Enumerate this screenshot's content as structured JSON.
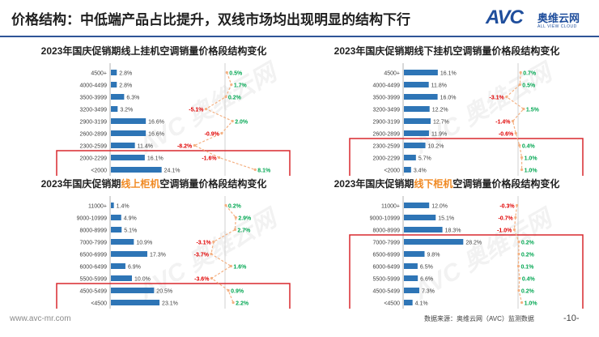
{
  "header": {
    "title": "价格结构：中低端产品占比提升，双线市场均出现明显的结构下行",
    "brand_mark": "AVC",
    "brand_cn": "奥维云网",
    "brand_en": "ALL VIEW CLOUD",
    "accent_color": "#2f5597"
  },
  "footer": {
    "website": "www.avc-mr.com",
    "source": "数据来源：奥维云网（AVC）监测数据",
    "page": "-10-"
  },
  "colors": {
    "bar": "#2e75b6",
    "change_line": "#f4b183",
    "positive": "#00a651",
    "negative": "#e00000",
    "highlight_box": "#d9282e"
  },
  "chart_data": [
    {
      "type": "bar",
      "title_parts": [
        "2023年国庆促销期线上挂机空调销量价格段结构变化"
      ],
      "categories": [
        "4500+",
        "4000-4499",
        "3500-3999",
        "3200-3499",
        "2900-3199",
        "2600-2899",
        "2300-2599",
        "2000-2299",
        "<2000"
      ],
      "values": [
        2.8,
        2.8,
        6.3,
        3.2,
        16.6,
        16.6,
        11.4,
        16.1,
        24.1
      ],
      "value_labels": [
        "2.8%",
        "2.8%",
        "6.3%",
        "3.2%",
        "16.6%",
        "16.6%",
        "11.4%",
        "16.1%",
        "24.1%"
      ],
      "changes": [
        0.5,
        1.7,
        0.2,
        -5.1,
        2.0,
        -0.9,
        -8.2,
        -1.6,
        8.1
      ],
      "change_labels": [
        "0.5%",
        "1.7%",
        "0.2%",
        "-5.1%",
        "2.0%",
        "-0.9%",
        "-8.2%",
        "-1.6%",
        "8.1%"
      ],
      "highlight_rows": [
        7,
        8
      ]
    },
    {
      "type": "bar",
      "title_parts": [
        "2023年国庆促销期线下挂机空调销量价格段结构变化"
      ],
      "categories": [
        "4500+",
        "4000-4499",
        "3500-3999",
        "3200-3499",
        "2900-3199",
        "2600-2899",
        "2300-2599",
        "2000-2299",
        "<2000"
      ],
      "values": [
        16.1,
        11.8,
        16.0,
        12.2,
        12.7,
        11.9,
        10.2,
        5.7,
        3.4
      ],
      "value_labels": [
        "16.1%",
        "11.8%",
        "16.0%",
        "12.2%",
        "12.7%",
        "11.9%",
        "10.2%",
        "5.7%",
        "3.4%"
      ],
      "changes": [
        0.7,
        0.5,
        -3.1,
        1.5,
        -1.4,
        -0.6,
        0.4,
        1.0,
        1.0
      ],
      "change_labels": [
        "0.7%",
        "0.5%",
        "-3.1%",
        "1.5%",
        "-1.4%",
        "-0.6%",
        "0.4%",
        "1.0%",
        "1.0%"
      ],
      "highlight_rows": [
        6,
        7,
        8
      ]
    },
    {
      "type": "bar",
      "title_parts": [
        "2023年国庆促销期",
        "线上柜机",
        "空调销量价格段结构变化"
      ],
      "categories": [
        "11000+",
        "9000-10999",
        "8000-8999",
        "7000-7999",
        "6500-6999",
        "6000-6499",
        "5500-5999",
        "4500-5499",
        "<4500"
      ],
      "values": [
        1.4,
        4.9,
        5.1,
        10.9,
        17.3,
        6.9,
        10.0,
        20.5,
        23.1
      ],
      "value_labels": [
        "1.4%",
        "4.9%",
        "5.1%",
        "10.9%",
        "17.3%",
        "6.9%",
        "10.0%",
        "20.5%",
        "23.1%"
      ],
      "changes": [
        0.2,
        2.9,
        2.7,
        -3.1,
        -3.7,
        1.6,
        -3.6,
        0.9,
        2.2
      ],
      "change_labels": [
        "0.2%",
        "2.9%",
        "2.7%",
        "-3.1%",
        "-3.7%",
        "1.6%",
        "-3.6%",
        "0.9%",
        "2.2%"
      ],
      "highlight_rows": [
        7,
        8
      ]
    },
    {
      "type": "bar",
      "title_parts": [
        "2023年国庆促销期",
        "线下柜机",
        "空调销量价格段结构变化"
      ],
      "categories": [
        "11000+",
        "9000-10999",
        "8000-8999",
        "7000-7999",
        "6500-6999",
        "6000-6499",
        "5500-5999",
        "4500-5499",
        "<4500"
      ],
      "values": [
        12.0,
        15.1,
        18.3,
        28.2,
        9.8,
        6.5,
        6.6,
        7.3,
        4.1
      ],
      "value_labels": [
        "12.0%",
        "15.1%",
        "18.3%",
        "28.2%",
        "9.8%",
        "6.5%",
        "6.6%",
        "7.3%",
        "4.1%"
      ],
      "changes": [
        -0.3,
        -0.7,
        -1.0,
        0.2,
        0.2,
        0.1,
        0.4,
        0.2,
        1.0
      ],
      "change_labels": [
        "-0.3%",
        "-0.7%",
        "-1.0%",
        "0.2%",
        "0.2%",
        "0.1%",
        "0.4%",
        "0.2%",
        "1.0%"
      ],
      "highlight_rows": [
        3,
        4,
        5,
        6,
        7,
        8
      ]
    }
  ]
}
